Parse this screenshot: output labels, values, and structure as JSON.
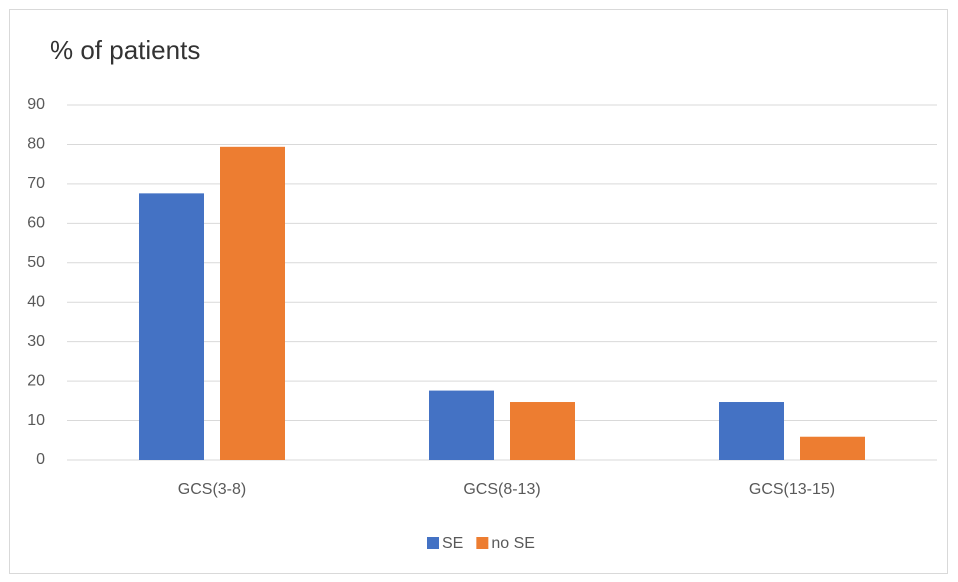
{
  "chart_data": {
    "type": "bar",
    "title": "% of patients",
    "categories": [
      "GCS(3-8)",
      "GCS(8-13)",
      "GCS(13-15)"
    ],
    "series": [
      {
        "name": "SE",
        "color": "#4472c4",
        "values": [
          67.6,
          17.6,
          14.7
        ]
      },
      {
        "name": "no SE",
        "color": "#ed7d31",
        "values": [
          79.4,
          14.7,
          5.9
        ]
      }
    ],
    "ylim": [
      0,
      90
    ],
    "yticks": [
      0,
      10,
      20,
      30,
      40,
      50,
      60,
      70,
      80,
      90
    ],
    "grid": true,
    "legend": "bottom"
  }
}
